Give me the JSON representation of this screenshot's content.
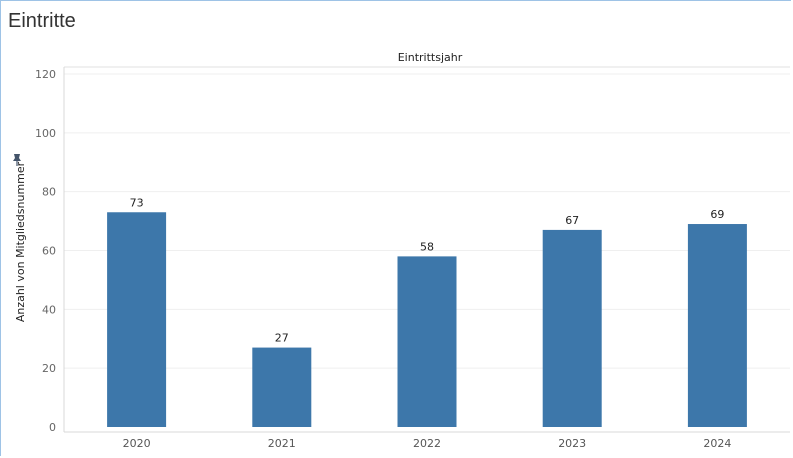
{
  "sheet": {
    "title": "Eintritte"
  },
  "chart_data": {
    "type": "bar",
    "title": "Eintrittsjahr",
    "xlabel": "",
    "ylabel": "Anzahl von Mitgliedsnummer",
    "categories": [
      "2020",
      "2021",
      "2022",
      "2023",
      "2024"
    ],
    "values": [
      73,
      27,
      58,
      67,
      69
    ],
    "ylim": [
      0,
      120
    ],
    "yticks": [
      0,
      20,
      40,
      60,
      80,
      100,
      120
    ],
    "grid": true,
    "bar_color": "#3d77aa",
    "pin_icon": "pin-icon"
  }
}
